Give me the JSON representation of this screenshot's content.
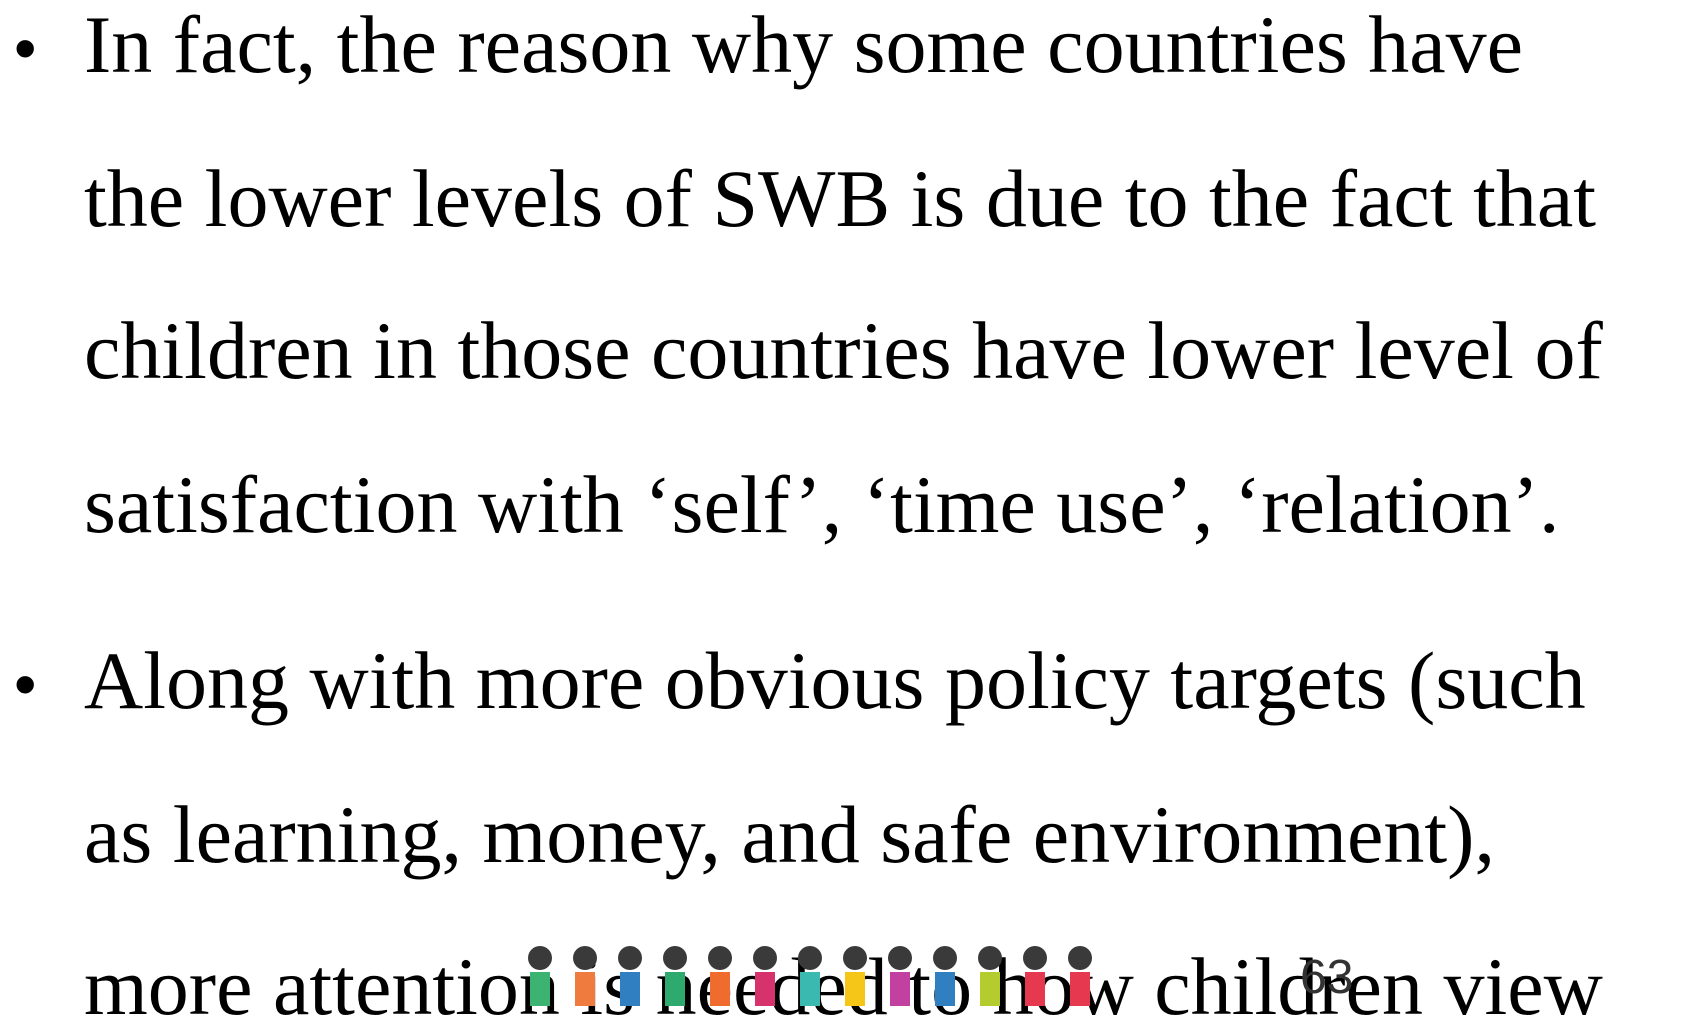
{
  "bullets": [
    {
      "lines": [
        "In fact, the reason why some countries have",
        "the lower levels of SWB is due to the fact that",
        "children in those countries have lower level of",
        "satisfaction with ‘self’, ‘time use’, ‘relation’."
      ]
    },
    {
      "lines": [
        "Along with more obvious policy targets (such",
        "as learning, money, and safe environment),",
        "more attention is needed to how children view"
      ]
    }
  ],
  "page_number": "63"
}
